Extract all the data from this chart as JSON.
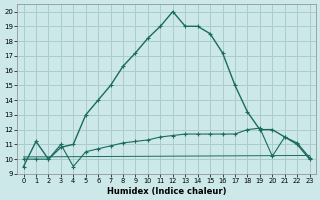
{
  "xlabel": "Humidex (Indice chaleur)",
  "bg_color": "#cce8e8",
  "grid_color": "#aacccc",
  "line_color": "#1a6b5e",
  "xlim": [
    -0.5,
    23.5
  ],
  "ylim": [
    9,
    20.5
  ],
  "xticks": [
    0,
    1,
    2,
    3,
    4,
    5,
    6,
    7,
    8,
    9,
    10,
    11,
    12,
    13,
    14,
    15,
    16,
    17,
    18,
    19,
    20,
    21,
    22,
    23
  ],
  "yticks": [
    9,
    10,
    11,
    12,
    13,
    14,
    15,
    16,
    17,
    18,
    19,
    20
  ],
  "curve1_x": [
    0,
    1,
    2,
    3,
    4,
    5,
    6,
    7,
    8,
    9,
    10,
    11,
    12,
    13,
    14,
    15,
    16,
    17,
    18,
    19,
    20,
    21,
    22,
    23
  ],
  "curve1_y": [
    9.5,
    11.2,
    10.0,
    10.8,
    11.0,
    13.0,
    14.0,
    15.0,
    16.3,
    17.2,
    18.2,
    19.0,
    20.0,
    19.0,
    19.0,
    18.5,
    17.2,
    15.0,
    13.2,
    12.0,
    12.0,
    11.5,
    11.0,
    10.0
  ],
  "curve2_x": [
    0,
    1,
    2,
    3,
    4,
    5,
    6,
    7,
    8,
    9,
    10,
    11,
    12,
    13,
    14,
    15,
    16,
    17,
    18,
    19,
    20,
    21,
    22,
    23
  ],
  "curve2_y": [
    10.0,
    10.0,
    10.0,
    11.0,
    9.5,
    10.5,
    10.7,
    10.9,
    11.1,
    11.2,
    11.3,
    11.5,
    11.6,
    11.7,
    11.7,
    11.7,
    11.7,
    11.7,
    12.0,
    12.1,
    10.2,
    11.5,
    11.1,
    10.1
  ],
  "curve3_x": [
    0,
    23
  ],
  "curve3_y": [
    10.15,
    10.25
  ]
}
